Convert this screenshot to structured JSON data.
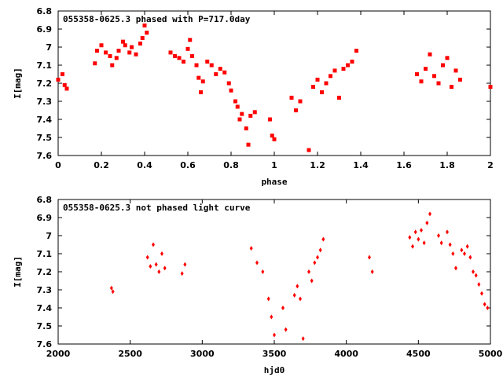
{
  "chart_data": [
    {
      "type": "scatter",
      "title": "055358-0625.3 phased with P=717.0day",
      "xlabel": "phase",
      "ylabel": "I[mag]",
      "xlim": [
        0,
        2
      ],
      "ylim": [
        7.6,
        6.8
      ],
      "y_inverted": true,
      "x_ticks": [
        "0",
        "0.2",
        "0.4",
        "0.6",
        "0.8",
        "1",
        "1.2",
        "1.4",
        "1.6",
        "1.8",
        "2"
      ],
      "y_ticks": [
        "6.8",
        "6.9",
        "7",
        "7.1",
        "7.2",
        "7.3",
        "7.4",
        "7.5",
        "7.6"
      ],
      "color": "#ff0000",
      "marker": "filled-square",
      "series": [
        {
          "x": [
            0.0,
            0.02,
            0.03,
            0.04,
            0.17,
            0.18,
            0.2,
            0.22,
            0.24,
            0.25,
            0.27,
            0.28,
            0.3,
            0.31,
            0.33,
            0.34,
            0.36,
            0.38,
            0.39,
            0.4,
            0.41,
            0.52,
            0.54,
            0.56,
            0.58,
            0.6,
            0.61,
            0.62,
            0.64,
            0.65,
            0.66,
            0.67,
            0.69,
            0.71,
            0.73,
            0.75,
            0.77,
            0.79,
            0.8,
            0.82,
            0.83,
            0.84,
            0.85,
            0.87,
            0.88,
            0.89,
            0.91,
            0.98,
            0.99,
            1.0,
            1.08,
            1.1,
            1.12,
            1.16,
            1.18,
            1.2,
            1.22,
            1.24,
            1.26,
            1.28,
            1.3,
            1.32,
            1.34,
            1.36,
            1.38,
            1.66,
            1.68,
            1.7,
            1.72,
            1.74,
            1.76,
            1.78,
            1.8,
            1.82,
            1.84,
            1.86,
            2.0
          ],
          "y": [
            7.18,
            7.15,
            7.21,
            7.23,
            7.09,
            7.02,
            6.99,
            7.03,
            7.05,
            7.1,
            7.06,
            7.02,
            6.97,
            6.99,
            7.03,
            7.0,
            7.04,
            6.98,
            6.95,
            6.88,
            6.92,
            7.03,
            7.05,
            7.06,
            7.08,
            7.01,
            6.96,
            7.05,
            7.1,
            7.17,
            7.25,
            7.19,
            7.08,
            7.1,
            7.15,
            7.12,
            7.14,
            7.2,
            7.24,
            7.3,
            7.33,
            7.4,
            7.37,
            7.45,
            7.54,
            7.38,
            7.36,
            7.4,
            7.49,
            7.51,
            7.28,
            7.35,
            7.3,
            7.57,
            7.22,
            7.18,
            7.25,
            7.2,
            7.16,
            7.13,
            7.28,
            7.12,
            7.1,
            7.08,
            7.02,
            7.15,
            7.19,
            7.12,
            7.04,
            7.16,
            7.2,
            7.1,
            7.06,
            7.22,
            7.13,
            7.18,
            7.22
          ]
        }
      ]
    },
    {
      "type": "scatter",
      "title": "055358-0625.3 not phased light curve",
      "xlabel": "hjd0",
      "ylabel": "I[mag]",
      "xlim": [
        2000,
        5000
      ],
      "ylim": [
        7.6,
        6.8
      ],
      "y_inverted": true,
      "x_ticks": [
        "2000",
        "2500",
        "3000",
        "3500",
        "4000",
        "4500",
        "5000"
      ],
      "y_ticks": [
        "6.8",
        "6.9",
        "7",
        "7.1",
        "7.2",
        "7.3",
        "7.4",
        "7.5",
        "7.6"
      ],
      "color": "#ff0000",
      "marker": "filled-diamond",
      "series": [
        {
          "x": [
            2370,
            2380,
            2620,
            2640,
            2660,
            2680,
            2700,
            2720,
            2740,
            2860,
            2880,
            3340,
            3380,
            3420,
            3460,
            3480,
            3500,
            3560,
            3580,
            3640,
            3660,
            3680,
            3700,
            3740,
            3760,
            3780,
            3800,
            3820,
            3840,
            4160,
            4180,
            4440,
            4460,
            4480,
            4500,
            4520,
            4540,
            4560,
            4580,
            4640,
            4660,
            4700,
            4720,
            4740,
            4760,
            4800,
            4820,
            4840,
            4860,
            4880,
            4900,
            4920,
            4940,
            4960,
            4980
          ],
          "y": [
            7.29,
            7.31,
            7.12,
            7.17,
            7.05,
            7.16,
            7.2,
            7.1,
            7.18,
            7.21,
            7.16,
            7.07,
            7.15,
            7.2,
            7.35,
            7.45,
            7.55,
            7.4,
            7.52,
            7.33,
            7.28,
            7.35,
            7.57,
            7.2,
            7.25,
            7.15,
            7.12,
            7.08,
            7.02,
            7.12,
            7.2,
            7.01,
            7.06,
            6.98,
            7.02,
            6.97,
            7.04,
            6.93,
            6.88,
            7.0,
            7.04,
            6.98,
            7.05,
            7.1,
            7.18,
            7.08,
            7.1,
            7.06,
            7.12,
            7.2,
            7.22,
            7.27,
            7.32,
            7.38,
            7.4
          ]
        }
      ]
    }
  ]
}
